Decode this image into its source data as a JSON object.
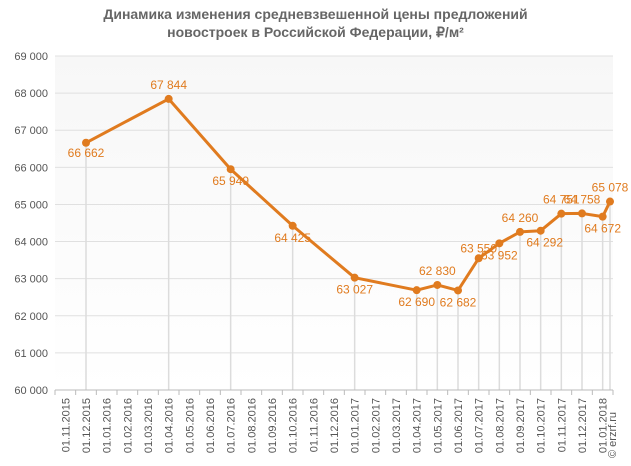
{
  "chart_data": {
    "type": "line",
    "title": [
      "Динамика изменения средневзвешенной цены предложений",
      "новостроек в Российской  Федерации, ₽/м²"
    ],
    "xlabel": "",
    "ylabel": "",
    "ylim": [
      60000,
      69000
    ],
    "yticks": [
      "60 000",
      "61 000",
      "62 000",
      "63 000",
      "64 000",
      "65 000",
      "66 000",
      "67 000",
      "68 000",
      "69 000"
    ],
    "x_categories": [
      "01.11.2015",
      "01.12.2015",
      "01.01.2016",
      "01.02.2016",
      "01.03.2016",
      "01.04.2016",
      "01.05.2016",
      "01.06.2016",
      "01.07.2016",
      "01.08.2016",
      "01.09.2016",
      "01.10.2016",
      "01.11.2016",
      "01.12.2016",
      "01.01.2017",
      "01.02.2017",
      "01.03.2017",
      "01.04.2017",
      "01.05.2017",
      "01.06.2017",
      "01.07.2017",
      "01.08.2017",
      "01.09.2017",
      "01.10.2017",
      "01.11.2017",
      "01.12.2017",
      "01.01.2018"
    ],
    "series": [
      {
        "color": "#E07B1F",
        "points": [
          {
            "x": "01.12.2015",
            "y": 66662,
            "label": "66 662"
          },
          {
            "x": "01.04.2016",
            "y": 67844,
            "label": "67 844"
          },
          {
            "x": "01.07.2016",
            "y": 65949,
            "label": "65 949"
          },
          {
            "x": "01.10.2016",
            "y": 64425,
            "label": "64 425"
          },
          {
            "x": "01.01.2017",
            "y": 63027,
            "label": "63 027"
          },
          {
            "x": "01.04.2017",
            "y": 62690,
            "label": "62 690"
          },
          {
            "x": "01.05.2017",
            "y": 62830,
            "label": "62 830"
          },
          {
            "x": "01.06.2017",
            "y": 62682,
            "label": "62 682"
          },
          {
            "x": "01.07.2017",
            "y": 63550,
            "label": "63 550"
          },
          {
            "x": "01.08.2017",
            "y": 63952,
            "label": "63 952"
          },
          {
            "x": "01.09.2017",
            "y": 64260,
            "label": "64 260"
          },
          {
            "x": "01.10.2017",
            "y": 64292,
            "label": "64 292"
          },
          {
            "x": "01.11.2017",
            "y": 64751,
            "label": "64 751"
          },
          {
            "x": "01.12.2017",
            "y": 64758,
            "label": "64 758"
          },
          {
            "x": "01.01.2018",
            "y": 64672,
            "label": "64 672"
          },
          {
            "x": "01.02.2018",
            "y": 65078,
            "label": "65 078"
          }
        ]
      }
    ],
    "grid": true,
    "legend": "none"
  },
  "watermark": "© erzrf.ru"
}
